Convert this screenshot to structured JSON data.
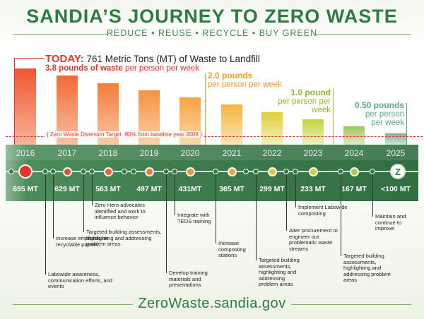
{
  "header": {
    "title": "SANDIA’S JOURNEY TO ZERO WASTE",
    "tagline": "REDUCE • REUSE • RECYCLE • BUY GREEN"
  },
  "today": {
    "label": "TODAY:",
    "text": " 761 Metric Tons (MT) of Waste to Landfill",
    "rate_bold": "3.8 pounds of waste",
    "rate_rest": " per person per week"
  },
  "callouts": {
    "c2021_value": "2.0 pounds",
    "c2021_rest": "per person per week",
    "c2023_value": "1.0 pound",
    "c2023_rest": "per person per week",
    "c2025_value": "0.50 pounds",
    "c2025_line2": "per person",
    "c2025_line3": "per week"
  },
  "target_text": "Zero Waste Diversion Target  -90% from baseline year 2008",
  "timeline": {
    "years": [
      "2016",
      "2017",
      "2018",
      "2019",
      "2020",
      "2021",
      "2022",
      "2023",
      "2024",
      "2025"
    ],
    "tons": [
      "695 MT",
      "629 MT",
      "563 MT",
      "497 MT",
      "431MT",
      "365 MT",
      "299 MT",
      "233 MT",
      "167 MT",
      "<100 MT"
    ]
  },
  "chart_data": {
    "type": "bar",
    "categories": [
      "2016",
      "2017",
      "2018",
      "2019",
      "2020",
      "2021",
      "2022",
      "2023",
      "2024",
      "2025"
    ],
    "values": [
      695,
      629,
      563,
      497,
      431,
      365,
      299,
      233,
      167,
      100
    ],
    "ylabel": "",
    "ylim": [
      0,
      760
    ]
  },
  "milestones": [
    "Labswide awareness, communication efforts, and events",
    "Increase emphasis on recyclable papers",
    "Targeted building assessments, highlighting and addressing problem areas",
    "Zero Hero advocates identified and work to influence behavior",
    "Develop training materials and presentations",
    "Integrate with TEDS training",
    "Increase composting stations",
    "Targeted building assessments, highlighting and addressing problem areas",
    "Alter procurement to engineer out problematic waste streams",
    "Implement Labswide composting",
    "Targeted building assessments, highlighting and addressing problem areas",
    "Maintain and continue to improve"
  ],
  "footer": {
    "url": "ZeroWaste.sandia.gov"
  },
  "icons": {
    "zero_waste": "zero-waste-logo-icon",
    "z_letter": "Z"
  },
  "colors": {
    "brand_green": "#2f7b44",
    "today_red": "#e2362b",
    "orange": "#f29a2e",
    "lime": "#9bc437",
    "teal": "#5aa980"
  }
}
